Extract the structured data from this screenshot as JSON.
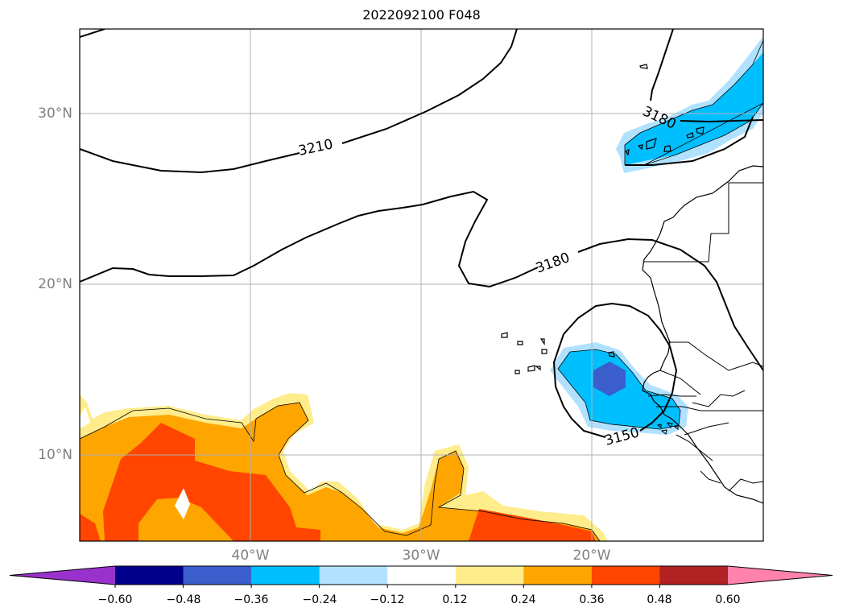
{
  "title": "2022092100 F048",
  "map": {
    "lat_labels": [
      "30°N",
      "20°N",
      "10°N"
    ],
    "lon_labels": [
      "40°W",
      "30°W",
      "20°W"
    ],
    "contour_labels": [
      "3210",
      "3180",
      "3180",
      "3150"
    ]
  },
  "colorbar": {
    "ticks": [
      "−0.60",
      "−0.48",
      "−0.36",
      "−0.24",
      "−0.12",
      "0.12",
      "0.24",
      "0.36",
      "0.48",
      "0.60"
    ],
    "colors": [
      "#9932cc",
      "#00008b",
      "#3a5fcd",
      "#00bfff",
      "#b0e2ff",
      "#ffffff",
      "#ffec8b",
      "#ffa500",
      "#ff4500",
      "#b22222",
      "#ff82ab"
    ],
    "extend": "both"
  },
  "styles": {
    "grid_color": "#b0b0b0",
    "tick_label_color": "#808080"
  }
}
